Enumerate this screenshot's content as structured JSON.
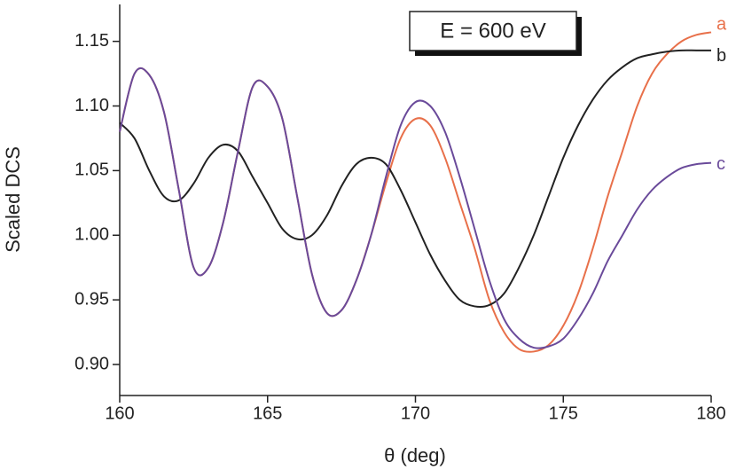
{
  "chart_data": {
    "type": "line",
    "x_label": "θ (deg)",
    "y_label": "Scaled DCS",
    "annotation": "E = 600 eV",
    "x": [
      160,
      160.5,
      161,
      161.5,
      162,
      162.5,
      163,
      163.5,
      164,
      164.5,
      165,
      165.5,
      166,
      166.5,
      167,
      167.5,
      168,
      168.5,
      169,
      169.5,
      170,
      170.5,
      171,
      171.5,
      172,
      172.5,
      173,
      173.5,
      174,
      174.5,
      175,
      175.5,
      176,
      176.5,
      177,
      177.5,
      178,
      178.5,
      179,
      179.5,
      180
    ],
    "series": [
      {
        "name": "a",
        "color": "#e8704a",
        "values": [
          1.08,
          1.125,
          1.124,
          1.095,
          1.035,
          0.975,
          0.975,
          1.01,
          1.065,
          1.115,
          1.115,
          1.09,
          1.03,
          0.97,
          0.94,
          0.942,
          0.965,
          1.0,
          1.04,
          1.075,
          1.09,
          1.085,
          1.06,
          1.025,
          0.99,
          0.95,
          0.925,
          0.912,
          0.91,
          0.915,
          0.93,
          0.955,
          0.99,
          1.03,
          1.065,
          1.1,
          1.125,
          1.14,
          1.15,
          1.155,
          1.157
        ]
      },
      {
        "name": "b",
        "color": "#222222",
        "values": [
          1.087,
          1.075,
          1.05,
          1.03,
          1.027,
          1.04,
          1.06,
          1.07,
          1.065,
          1.045,
          1.025,
          1.005,
          0.997,
          1.0,
          1.015,
          1.038,
          1.055,
          1.06,
          1.055,
          1.035,
          1.01,
          0.985,
          0.965,
          0.95,
          0.945,
          0.946,
          0.955,
          0.975,
          1.0,
          1.03,
          1.06,
          1.085,
          1.105,
          1.12,
          1.13,
          1.137,
          1.14,
          1.142,
          1.143,
          1.143,
          1.143
        ]
      },
      {
        "name": "c",
        "color": "#6a4a9a",
        "values": [
          1.08,
          1.125,
          1.124,
          1.095,
          1.035,
          0.975,
          0.975,
          1.01,
          1.065,
          1.115,
          1.115,
          1.09,
          1.03,
          0.97,
          0.94,
          0.942,
          0.965,
          1.0,
          1.045,
          1.085,
          1.103,
          1.1,
          1.08,
          1.045,
          1.005,
          0.965,
          0.935,
          0.92,
          0.913,
          0.914,
          0.92,
          0.935,
          0.955,
          0.98,
          1.0,
          1.02,
          1.035,
          1.045,
          1.052,
          1.055,
          1.056
        ]
      }
    ],
    "xlim": [
      160,
      180
    ],
    "xticks": [
      160,
      165,
      170,
      175,
      180
    ],
    "ylim": [
      0.876,
      1.182
    ],
    "yticks": [
      {
        "value": 0.9,
        "label": "0.90"
      },
      {
        "value": 0.95,
        "label": "0.95"
      },
      {
        "value": 1.0,
        "label": "1.00"
      },
      {
        "value": 1.05,
        "label": "1.05"
      },
      {
        "value": 1.1,
        "label": "1.10"
      },
      {
        "value": 1.15,
        "label": "1.15"
      }
    ]
  }
}
